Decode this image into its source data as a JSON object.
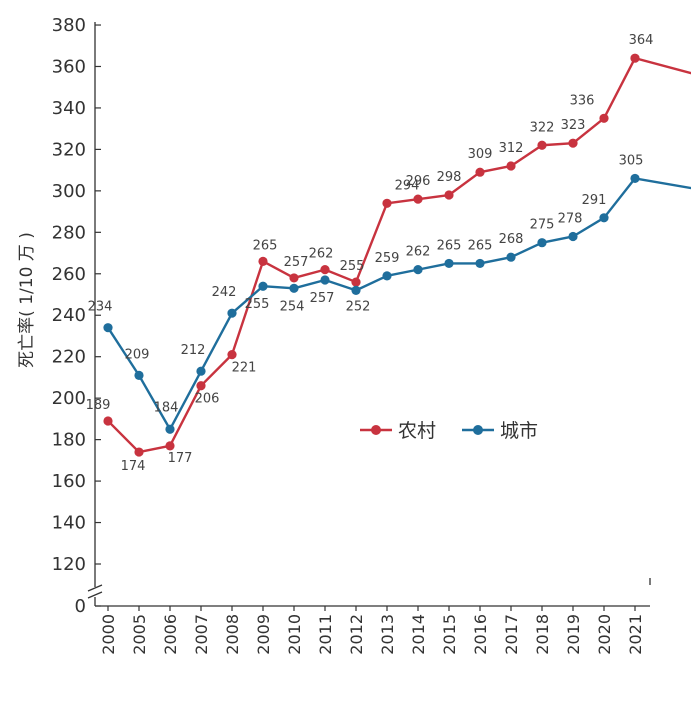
{
  "chart_data": {
    "type": "line",
    "title": "",
    "xlabel": "",
    "ylabel": "死亡率( 1/10 万 )",
    "categories": [
      "2000",
      "2005",
      "2006",
      "2007",
      "2008",
      "2009",
      "2010",
      "2011",
      "2012",
      "2013",
      "2014",
      "2015",
      "2016",
      "2017",
      "2018",
      "2019",
      "2020",
      "2021"
    ],
    "yticks": [
      0,
      120,
      140,
      160,
      180,
      200,
      220,
      240,
      260,
      280,
      300,
      320,
      340,
      360,
      380
    ],
    "ylim": [
      110,
      380
    ],
    "axis_break": true,
    "grid": false,
    "legend_position": "center-right",
    "series": [
      {
        "name": "农村",
        "color": "#c8333f",
        "values": [
          189,
          174,
          177,
          206,
          221,
          265,
          257,
          262,
          255,
          294,
          296,
          298,
          309,
          312,
          322,
          323,
          336,
          364
        ],
        "plot_values": [
          189,
          174,
          177,
          206,
          221,
          266,
          258,
          262,
          256,
          294,
          296,
          298,
          309,
          312,
          322,
          323,
          335,
          364
        ],
        "labels": [
          "189",
          "174",
          "177",
          "206",
          "221",
          "265",
          "257",
          "262",
          "255",
          "294",
          "296",
          "298",
          "309",
          "312",
          "322",
          "323",
          "336",
          "364"
        ]
      },
      {
        "name": "城市",
        "color": "#1f6e9c",
        "values": [
          234,
          209,
          184,
          212,
          242,
          255,
          254,
          257,
          252,
          259,
          262,
          265,
          265,
          268,
          275,
          278,
          291,
          305
        ],
        "plot_values": [
          234,
          211,
          185,
          213,
          241,
          254,
          253,
          257,
          252,
          259,
          262,
          265,
          265,
          268,
          275,
          278,
          287,
          306
        ],
        "labels": [
          "234",
          "209",
          "184",
          "212",
          "242",
          "255",
          "254",
          "257",
          "252",
          "259",
          "262",
          "265",
          "265",
          "268",
          "275",
          "278",
          "291",
          "305"
        ]
      }
    ],
    "extra_points": [
      {
        "series": "农村",
        "x": 20.5,
        "value": 350
      },
      {
        "series": "城市",
        "x": 20.5,
        "value": 297
      }
    ]
  }
}
